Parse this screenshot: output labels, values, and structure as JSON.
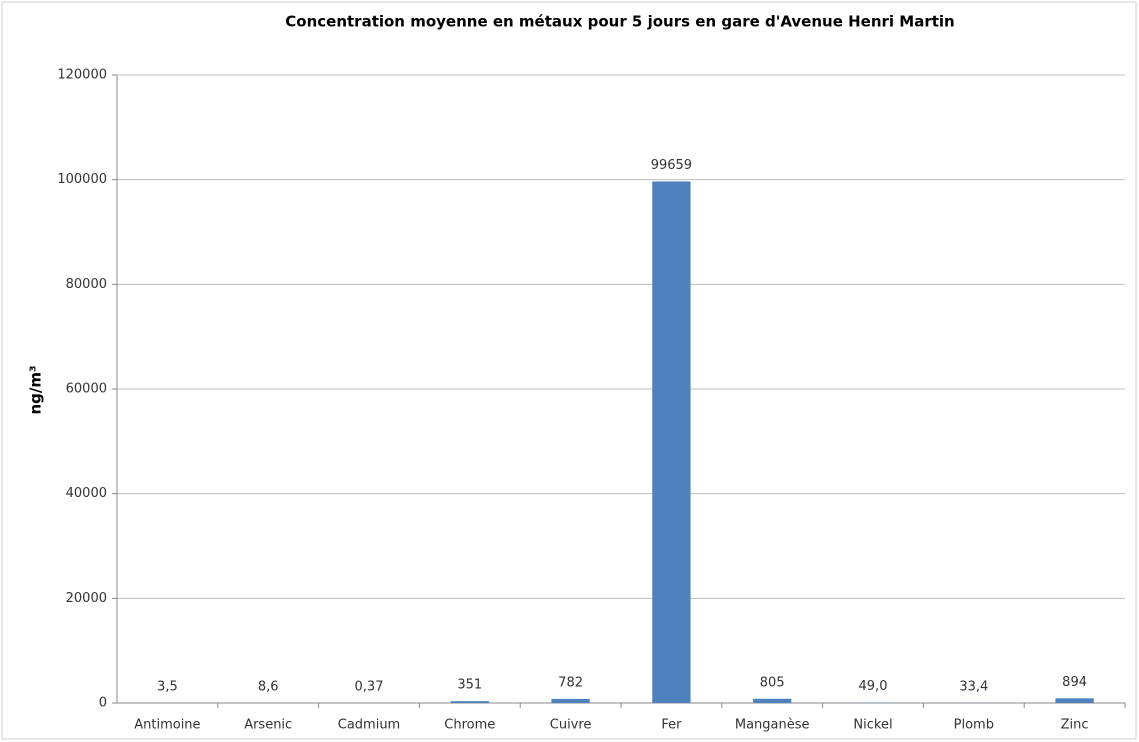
{
  "chart_data": {
    "type": "bar",
    "title": "Concentration moyenne en métaux pour 5 jours en gare d'Avenue Henri Martin",
    "y_label": "ng/m³",
    "categories": [
      "Antimoine",
      "Arsenic",
      "Cadmium",
      "Chrome",
      "Cuivre",
      "Fer",
      "Manganèse",
      "Nickel",
      "Plomb",
      "Zinc"
    ],
    "values": [
      3.5,
      8.6,
      0.37,
      351,
      782,
      99659,
      805,
      49.0,
      33.4,
      894
    ],
    "value_labels": [
      "3,5",
      "8,6",
      "0,37",
      "351",
      "782",
      "99659",
      "805",
      "49,0",
      "33,4",
      "894"
    ],
    "color": "#4f81bd",
    "ylim": [
      0,
      120000
    ],
    "yticks": [
      0,
      20000,
      40000,
      60000,
      80000,
      100000,
      120000
    ],
    "grid": true
  }
}
